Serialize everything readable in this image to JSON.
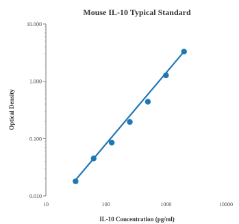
{
  "chart_data": {
    "type": "scatter",
    "title": "Mouse IL-10 Typical Standard",
    "xlabel": "IL-10 Concentration (pg/ml)",
    "ylabel": "Optical Density",
    "x_scale": "log",
    "y_scale": "log",
    "xlim": [
      10,
      10000
    ],
    "ylim": [
      0.01,
      10
    ],
    "x_ticks": [
      "10",
      "100",
      "1000",
      "10000"
    ],
    "y_ticks": [
      "0.010",
      "0.100",
      "1.000",
      "10.000"
    ],
    "grid": false,
    "legend": "none",
    "series": [
      {
        "x": [
          31.25,
          62.5,
          125,
          250,
          500,
          1000,
          2000
        ],
        "y": [
          0.018,
          0.045,
          0.085,
          0.195,
          0.44,
          1.27,
          3.3
        ],
        "color": "#1f77b4",
        "trendline": {
          "type": "power",
          "x": [
            31.25,
            2000
          ],
          "y": [
            0.019,
            3.3
          ]
        }
      }
    ]
  }
}
